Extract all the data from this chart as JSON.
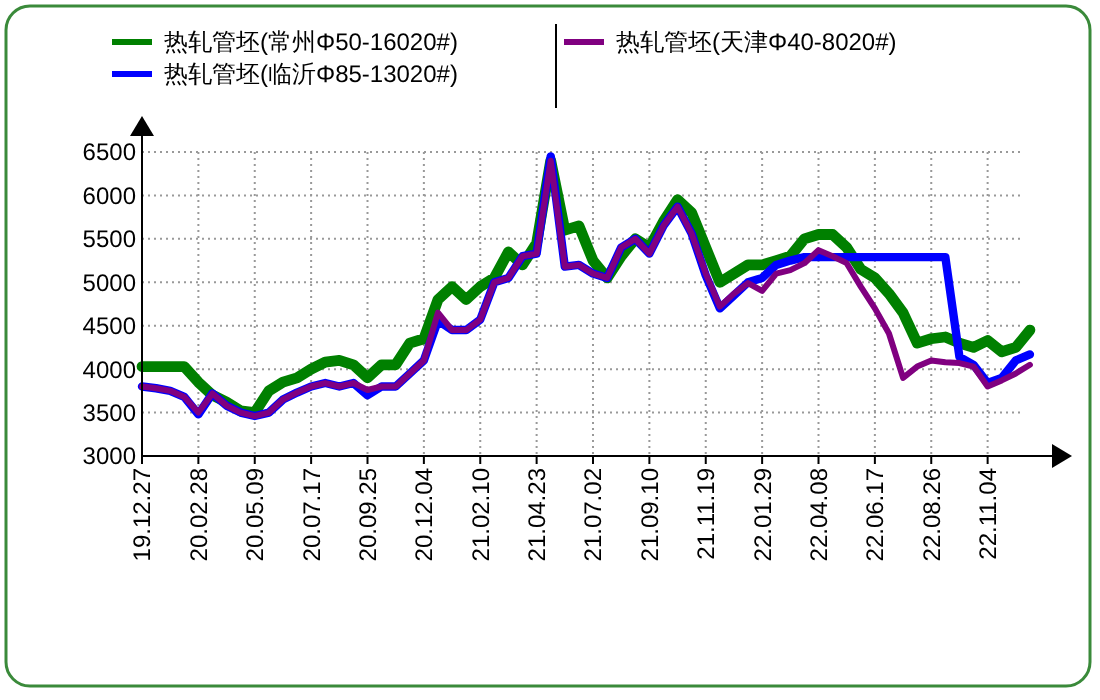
{
  "chart_data": {
    "type": "line",
    "categories": [
      "19.12.27",
      null,
      null,
      null,
      "20.02.28",
      null,
      null,
      null,
      "20.05.09",
      null,
      null,
      null,
      "20.07.17",
      null,
      null,
      null,
      "20.09.25",
      null,
      null,
      null,
      "20.12.04",
      null,
      null,
      null,
      "21.02.10",
      null,
      null,
      null,
      "21.04.23",
      null,
      null,
      null,
      "21.07.02",
      null,
      null,
      null,
      "21.09.10",
      null,
      null,
      null,
      "21.11.19",
      null,
      null,
      null,
      "22.01.29",
      null,
      null,
      null,
      "22.04.08",
      null,
      null,
      null,
      "22.06.17",
      null,
      null,
      null,
      "22.08.26",
      null,
      null,
      null,
      "22.11.04",
      null,
      null,
      null
    ],
    "series": [
      {
        "name": "热轧管坯(常州Φ50-16020#)",
        "color": "#008000",
        "values": [
          4030,
          4030,
          4030,
          4030,
          3850,
          3700,
          3620,
          3520,
          3500,
          3750,
          3850,
          3900,
          4000,
          4080,
          4100,
          4050,
          3900,
          4050,
          4050,
          4300,
          4350,
          4800,
          4950,
          4800,
          4950,
          5050,
          5350,
          5200,
          5450,
          6400,
          5600,
          5650,
          5250,
          5050,
          5300,
          5500,
          5400,
          5700,
          5950,
          5800,
          5400,
          5000,
          5100,
          5200,
          5200,
          5250,
          5300,
          5500,
          5550,
          5550,
          5400,
          5150,
          5050,
          4870,
          4650,
          4300,
          4350,
          4370,
          4300,
          4250,
          4330,
          4200,
          4250,
          4450
        ]
      },
      {
        "name": "热轧管坯(临沂Φ85-13020#)",
        "color": "#0000ff",
        "values": [
          3800,
          3780,
          3750,
          3680,
          3480,
          3720,
          3580,
          3500,
          3460,
          3500,
          3650,
          3730,
          3800,
          3840,
          3800,
          3840,
          3700,
          3800,
          3800,
          3950,
          4100,
          4560,
          4450,
          4450,
          4570,
          5000,
          5050,
          5300,
          5330,
          6450,
          5180,
          5200,
          5100,
          5050,
          5400,
          5500,
          5330,
          5650,
          5870,
          5560,
          5080,
          4700,
          4850,
          5000,
          5050,
          5200,
          5250,
          5290,
          5290,
          5290,
          5290,
          5290,
          5290,
          5290,
          5290,
          5290,
          5290,
          5290,
          4140,
          4050,
          3840,
          3900,
          4100,
          4170
        ]
      },
      {
        "name": "热轧管坯(天津Φ40-8020#)",
        "color": "#800080",
        "values": [
          3800,
          3780,
          3750,
          3680,
          3500,
          3720,
          3580,
          3500,
          3460,
          3500,
          3650,
          3730,
          3800,
          3840,
          3800,
          3840,
          3760,
          3800,
          3800,
          3950,
          4100,
          4650,
          4450,
          4450,
          4570,
          5000,
          5050,
          5300,
          5330,
          6400,
          5180,
          5200,
          5100,
          5050,
          5400,
          5500,
          5330,
          5650,
          5870,
          5560,
          5100,
          4720,
          4870,
          4990,
          4900,
          5100,
          5140,
          5220,
          5370,
          5300,
          5220,
          4950,
          4700,
          4410,
          3900,
          4030,
          4100,
          4080,
          4070,
          4030,
          3800,
          3870,
          3950,
          4050
        ]
      }
    ],
    "ylim": [
      3000,
      6500
    ],
    "yticks": [
      3000,
      3500,
      4000,
      4500,
      5000,
      5500,
      6000,
      6500
    ],
    "grid": true,
    "legend": "top",
    "line_style": "solid"
  }
}
